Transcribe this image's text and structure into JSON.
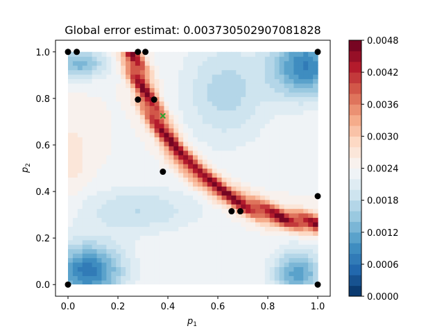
{
  "chart_data": {
    "type": "heatmap",
    "title": "Global error estimat: 0.003730502907081828",
    "xlabel": "p",
    "xlabel_sub": "1",
    "ylabel": "p",
    "ylabel_sub": "2",
    "xlim": [
      -0.05,
      1.05
    ],
    "ylim": [
      -0.05,
      1.05
    ],
    "xticks": [
      0.0,
      0.2,
      0.4,
      0.6,
      0.8,
      1.0
    ],
    "xtick_labels": [
      "0.0",
      "0.2",
      "0.4",
      "0.6",
      "0.8",
      "1.0"
    ],
    "yticks": [
      0.0,
      0.2,
      0.4,
      0.6,
      0.8,
      1.0
    ],
    "ytick_labels": [
      "0.0",
      "0.2",
      "0.4",
      "0.6",
      "0.8",
      "1.0"
    ],
    "colorbar": {
      "min": 0.0,
      "max": 0.0048,
      "ticks": [
        0.0,
        0.0006,
        0.0012,
        0.0018,
        0.0024,
        0.003,
        0.0036,
        0.0042,
        0.0048
      ],
      "tick_labels": [
        "0.0000",
        "0.0006",
        "0.0012",
        "0.0018",
        "0.0024",
        "0.0030",
        "0.0036",
        "0.0042",
        "0.0048"
      ],
      "colormap": "RdBu_r",
      "levels": 24
    },
    "error_ridge": [
      [
        0.25,
        1.0
      ],
      [
        0.29,
        0.88
      ],
      [
        0.33,
        0.77
      ],
      [
        0.38,
        0.67
      ],
      [
        0.44,
        0.57
      ],
      [
        0.52,
        0.48
      ],
      [
        0.62,
        0.4
      ],
      [
        0.72,
        0.34
      ],
      [
        0.85,
        0.29
      ],
      [
        1.0,
        0.26
      ]
    ],
    "points": [
      {
        "x": 0.0,
        "y": 1.0
      },
      {
        "x": 0.035,
        "y": 1.0
      },
      {
        "x": 0.28,
        "y": 1.0
      },
      {
        "x": 0.31,
        "y": 1.0
      },
      {
        "x": 1.0,
        "y": 1.0
      },
      {
        "x": 0.28,
        "y": 0.795
      },
      {
        "x": 0.345,
        "y": 0.795
      },
      {
        "x": 0.38,
        "y": 0.485
      },
      {
        "x": 0.655,
        "y": 0.315
      },
      {
        "x": 0.69,
        "y": 0.315
      },
      {
        "x": 1.0,
        "y": 0.38
      },
      {
        "x": 0.0,
        "y": 0.0
      },
      {
        "x": 1.0,
        "y": 0.0
      }
    ],
    "marker_x": {
      "x": 0.38,
      "y": 0.725
    },
    "colors": {
      "point": "#000000",
      "marker_x": "#2ca02c"
    }
  }
}
